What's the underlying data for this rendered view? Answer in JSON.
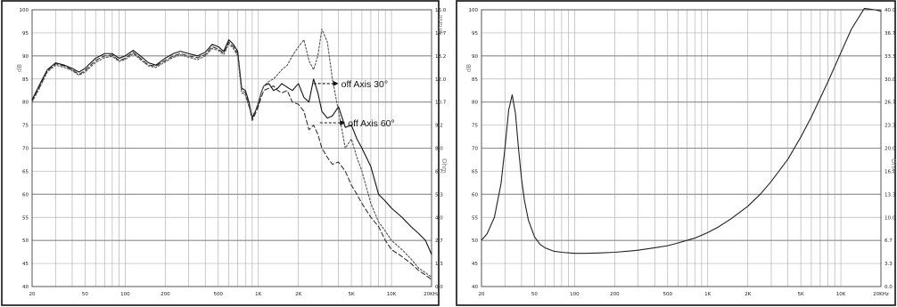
{
  "chart_data": [
    {
      "type": "line",
      "panel": "frequency-response",
      "x_scale": "log",
      "xlim": [
        20,
        20000
      ],
      "ylim": [
        40,
        100
      ],
      "y_ticks": [
        40,
        45,
        50,
        55,
        60,
        65,
        70,
        75,
        80,
        85,
        90,
        95,
        100
      ],
      "y_ticks_right": [
        "0.0",
        "1.3",
        "2.7",
        "4.0",
        "5.3",
        "6.7",
        "8.0",
        "9.2",
        "10.7",
        "12.0",
        "13.2",
        "14.7",
        "16.0"
      ],
      "x_tick_values": [
        20,
        50,
        100,
        200,
        500,
        1000,
        2000,
        5000,
        10000,
        20000
      ],
      "x_tick_labels": [
        "20",
        "50",
        "100",
        "200",
        "500",
        "1K",
        "2K",
        "5K",
        "10K",
        "20KHz"
      ],
      "ylabel": "dB",
      "ylabel_right": "Ohm",
      "right_top_label": "phase",
      "grid": true,
      "annotations": [
        {
          "text": "off Axis 30°",
          "arrow_from": [
            2600,
            84
          ],
          "arrow_to": [
            4000,
            84
          ]
        },
        {
          "text": "off Axis 60°",
          "arrow_from": [
            2900,
            75.5
          ],
          "arrow_to": [
            4500,
            75.5
          ]
        }
      ],
      "series": [
        {
          "dash": "solid",
          "color": "#111111",
          "x": [
            20,
            23,
            26,
            30,
            35,
            40,
            45,
            50,
            55,
            60,
            70,
            80,
            90,
            100,
            115,
            130,
            150,
            170,
            200,
            230,
            260,
            300,
            350,
            400,
            450,
            500,
            550,
            600,
            650,
            700,
            750,
            800,
            850,
            900,
            950,
            1000,
            1050,
            1100,
            1200,
            1300,
            1400,
            1500,
            1650,
            1800,
            2000,
            2200,
            2400,
            2600,
            2800,
            3000,
            3300,
            3600,
            4000,
            4500,
            5000,
            5500,
            6000,
            7000,
            8000,
            9000,
            10000,
            12000,
            14000,
            16000,
            18000,
            20000
          ],
          "y": [
            80.5,
            84,
            87,
            88.5,
            88,
            87.3,
            86.5,
            87.3,
            88.5,
            89.5,
            90.5,
            90.5,
            89.5,
            90,
            91.2,
            90,
            88.5,
            88,
            89.5,
            90.5,
            91,
            90.5,
            90,
            90.8,
            92.5,
            92,
            91,
            93.5,
            92.5,
            91,
            83,
            82.5,
            80,
            76.5,
            78,
            79.5,
            82,
            83.5,
            84,
            82.5,
            83,
            84,
            83.2,
            82.5,
            84,
            81,
            80,
            85,
            82,
            78,
            76.5,
            77,
            79,
            74.5,
            75,
            72,
            70,
            66,
            60,
            58.5,
            57,
            55,
            53,
            51.5,
            50,
            47
          ]
        },
        {
          "dash": "5,3",
          "color": "#333333",
          "x": [
            20,
            23,
            26,
            30,
            35,
            40,
            45,
            50,
            55,
            60,
            70,
            80,
            90,
            100,
            115,
            130,
            150,
            170,
            200,
            230,
            260,
            300,
            350,
            400,
            450,
            500,
            550,
            600,
            650,
            700,
            750,
            800,
            850,
            900,
            950,
            1000,
            1050,
            1100,
            1200,
            1300,
            1400,
            1500,
            1650,
            1800,
            2000,
            2200,
            2400,
            2600,
            2800,
            3000,
            3300,
            3600,
            4000,
            4500,
            5000,
            5500,
            6000,
            7000,
            8000,
            9000,
            10000,
            12000,
            14000,
            16000,
            18000,
            20000
          ],
          "y": [
            80.2,
            83.5,
            86.8,
            88.3,
            87.8,
            87,
            86,
            86.8,
            88,
            89,
            90,
            90.2,
            89,
            89.5,
            90.8,
            89.5,
            88,
            87.8,
            89,
            90,
            90.5,
            90,
            89.6,
            90.3,
            92,
            91.5,
            90.6,
            93,
            92,
            90.5,
            82.5,
            82,
            79.5,
            76,
            77.5,
            79,
            81,
            82.5,
            83,
            83.5,
            82.5,
            82,
            82.5,
            80,
            79.5,
            78,
            74,
            75,
            73,
            70,
            68,
            66.5,
            67,
            65,
            62,
            60,
            58,
            55,
            53,
            50,
            48,
            46.5,
            45,
            43.5,
            42.5,
            41.5
          ]
        },
        {
          "dash": "2,2",
          "color": "#555555",
          "x": [
            20,
            23,
            26,
            30,
            35,
            40,
            45,
            50,
            55,
            60,
            70,
            80,
            90,
            100,
            115,
            130,
            150,
            170,
            200,
            230,
            260,
            300,
            350,
            400,
            450,
            500,
            550,
            600,
            650,
            700,
            750,
            800,
            850,
            900,
            950,
            1000,
            1050,
            1100,
            1200,
            1300,
            1400,
            1500,
            1650,
            1800,
            2000,
            2200,
            2400,
            2600,
            2800,
            3000,
            3300,
            3600,
            4000,
            4500,
            5000,
            5500,
            6000,
            7000,
            8000,
            9000,
            10000,
            12000,
            14000,
            16000,
            18000,
            20000
          ],
          "y": [
            80,
            83.3,
            86.5,
            88,
            87.5,
            86.8,
            85.8,
            86.5,
            87.6,
            88.6,
            89.6,
            89.9,
            88.8,
            89.2,
            90.5,
            89.2,
            87.8,
            87.5,
            88.7,
            89.7,
            90.2,
            89.7,
            89.2,
            90,
            91.6,
            91.2,
            90.3,
            92.6,
            91.6,
            90,
            82,
            81.5,
            79,
            77,
            78,
            80,
            82,
            83.5,
            84.5,
            85,
            86,
            87,
            88,
            90,
            92,
            93.5,
            89,
            87,
            90,
            95.8,
            93,
            85,
            78,
            70,
            72,
            68,
            65,
            58,
            54,
            52,
            50,
            48,
            46,
            44,
            43,
            42
          ]
        }
      ]
    },
    {
      "type": "line",
      "panel": "impedance",
      "x_scale": "log",
      "xlim": [
        20,
        20000
      ],
      "ylim": [
        0,
        40
      ],
      "y_ticks": [
        40,
        45,
        50,
        55,
        60,
        65,
        70,
        75,
        80,
        85,
        90,
        95,
        100
      ],
      "y_ticks_right": [
        "0.0",
        "3.3",
        "6.7",
        "10.0",
        "13.3",
        "16.7",
        "20.0",
        "23.3",
        "26.7",
        "30.0",
        "33.3",
        "36.7",
        "40.0"
      ],
      "x_tick_values": [
        20,
        50,
        100,
        200,
        500,
        1000,
        2000,
        5000,
        10000,
        20000
      ],
      "x_tick_labels": [
        "20",
        "50",
        "100",
        "200",
        "500",
        "1K",
        "2K",
        "5K",
        "10K",
        "20KHz"
      ],
      "ylabel": "dB",
      "ylabel_right": "Ohm",
      "grid": true,
      "series": [
        {
          "dash": "solid",
          "color": "#222222",
          "x": [
            20,
            22,
            25,
            28,
            30,
            32,
            34,
            36,
            38,
            40,
            42,
            45,
            50,
            55,
            60,
            70,
            80,
            100,
            120,
            150,
            200,
            250,
            300,
            400,
            500,
            600,
            800,
            1000,
            1200,
            1500,
            2000,
            2500,
            3000,
            4000,
            5000,
            6000,
            8000,
            10000,
            12000,
            15000,
            18000,
            20000
          ],
          "y": [
            6.7,
            7.6,
            10,
            14.8,
            20,
            25.5,
            27.7,
            25,
            19.8,
            15.5,
            12.5,
            9.6,
            7.2,
            6.1,
            5.6,
            5.1,
            4.95,
            4.8,
            4.8,
            4.85,
            4.95,
            5.1,
            5.25,
            5.6,
            5.9,
            6.3,
            7.0,
            7.8,
            8.6,
            9.8,
            11.6,
            13.4,
            15.2,
            18.4,
            21.6,
            24.5,
            29.6,
            33.8,
            37.2,
            40.2,
            40.0,
            39.8
          ]
        }
      ]
    }
  ],
  "annotation_labels": [
    "off Axis 30°",
    "off Axis 60°"
  ]
}
